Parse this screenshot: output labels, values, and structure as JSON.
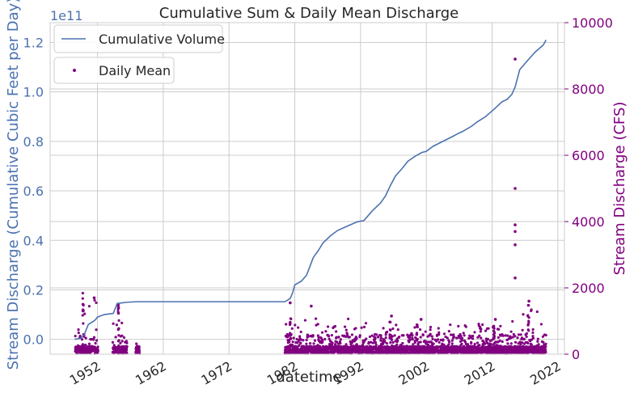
{
  "chart_data": {
    "type": "line+scatter",
    "title": "Cumulative Sum & Daily Mean Discharge",
    "xlabel": "datetime",
    "ylabel_left": "Stream Discharge (Cumulative Cubic Feet per Day)",
    "ylabel_right": "Stream Discharge (CFS)",
    "left_axis_offset_text": "1e11",
    "x_range": [
      1944.8,
      2023.0
    ],
    "x_ticks": [
      1952,
      1962,
      1972,
      1982,
      1992,
      2002,
      2012,
      2022
    ],
    "x_tick_labels": [
      "1952",
      "1962",
      "1972",
      "1982",
      "1992",
      "2002",
      "2012",
      "2022"
    ],
    "ylim_left": [
      -0.06,
      1.28
    ],
    "left_ticks": [
      0.0,
      0.2,
      0.4,
      0.6,
      0.8,
      1.0,
      1.2
    ],
    "left_tick_labels": [
      "0.0",
      "0.2",
      "0.4",
      "0.6",
      "0.8",
      "1.0",
      "1.2"
    ],
    "ylim_right": [
      0,
      10000
    ],
    "right_ticks": [
      0,
      2000,
      4000,
      6000,
      8000,
      10000
    ],
    "right_tick_labels": [
      "0",
      "2000",
      "4000",
      "6000",
      "8000",
      "10000"
    ],
    "grid": true,
    "legend": [
      {
        "label": "Cumulative Volume",
        "placement": "upper-left"
      },
      {
        "label": "Daily Mean",
        "placement": "upper-left-below"
      }
    ],
    "colors": {
      "cumulative": "#4c72b0",
      "daily": "#800080",
      "left_axis": "#4c72b0",
      "right_axis": "#800080",
      "grid": "#cccccc",
      "text": "#262626"
    },
    "series": [
      {
        "name": "Cumulative Volume",
        "axis": "left",
        "x": [
          1948.5,
          1949.5,
          1950.0,
          1950.6,
          1951.5,
          1951.7,
          1952.0,
          1953.0,
          1954.4,
          1955.0,
          1956.5,
          1958.0,
          1959.0,
          1970.0,
          1980.5,
          1981.3,
          1981.7,
          1982.0,
          1983.0,
          1983.8,
          1984.8,
          1985.6,
          1986.3,
          1987.5,
          1988.5,
          1990.2,
          1991.5,
          1992.5,
          1993.8,
          1995.0,
          1995.8,
          1996.5,
          1997.3,
          1998.3,
          1999.2,
          2000.3,
          2001.3,
          2002.0,
          2003.0,
          2004.5,
          2006.0,
          2006.7,
          2007.5,
          2008.8,
          2009.8,
          2011.0,
          2012.3,
          2013.5,
          2014.3,
          2015.0,
          2015.5,
          2016.2,
          2017.5,
          2018.5,
          2019.8,
          2020.2
        ],
        "y": [
          0.0,
          0.005,
          0.02,
          0.06,
          0.075,
          0.08,
          0.09,
          0.1,
          0.105,
          0.145,
          0.15,
          0.152,
          0.152,
          0.152,
          0.152,
          0.165,
          0.19,
          0.22,
          0.235,
          0.26,
          0.33,
          0.36,
          0.39,
          0.42,
          0.44,
          0.46,
          0.475,
          0.48,
          0.52,
          0.55,
          0.58,
          0.62,
          0.66,
          0.69,
          0.72,
          0.74,
          0.755,
          0.76,
          0.78,
          0.8,
          0.82,
          0.83,
          0.84,
          0.86,
          0.88,
          0.9,
          0.93,
          0.96,
          0.97,
          0.99,
          1.02,
          1.09,
          1.13,
          1.16,
          1.19,
          1.21
        ]
      },
      {
        "name": "Daily Mean",
        "axis": "right",
        "outliers": [
          {
            "x": 2015.5,
            "y": 8900
          },
          {
            "x": 2015.5,
            "y": 5000
          },
          {
            "x": 2015.5,
            "y": 3900
          },
          {
            "x": 2015.5,
            "y": 3700
          },
          {
            "x": 2015.5,
            "y": 3300
          },
          {
            "x": 2015.5,
            "y": 2300
          },
          {
            "x": 1951.5,
            "y": 1700
          },
          {
            "x": 1949.8,
            "y": 1500
          },
          {
            "x": 1955.2,
            "y": 1400
          },
          {
            "x": 1981.3,
            "y": 1550
          },
          {
            "x": 1984.5,
            "y": 1450
          },
          {
            "x": 1996.7,
            "y": 1150
          },
          {
            "x": 2017.6,
            "y": 1600
          },
          {
            "x": 2001.2,
            "y": 1050
          },
          {
            "x": 2012.5,
            "y": 1050
          }
        ],
        "bursts": [
          {
            "x0": 1948.6,
            "x1": 1952.1,
            "peak": 1950,
            "peak_x": 1949.8
          },
          {
            "x0": 1954.3,
            "x1": 1956.5,
            "peak": 1500,
            "peak_x": 1955.2
          },
          {
            "x0": 1957.8,
            "x1": 1958.4,
            "peak": 150,
            "peak_x": 1958.0
          },
          {
            "x0": 1980.5,
            "x1": 1990.5,
            "peak": 1150,
            "peak_x": 1981.3
          },
          {
            "x0": 1990.5,
            "x1": 1999.5,
            "peak": 1000,
            "peak_x": 1996.5
          },
          {
            "x0": 1999.5,
            "x1": 2009.8,
            "peak": 900,
            "peak_x": 2000.6
          },
          {
            "x0": 2009.8,
            "x1": 2014.7,
            "peak": 900,
            "peak_x": 2012.3
          },
          {
            "x0": 2014.7,
            "x1": 2020.2,
            "peak": 1500,
            "peak_x": 2017.5
          }
        ]
      }
    ]
  }
}
